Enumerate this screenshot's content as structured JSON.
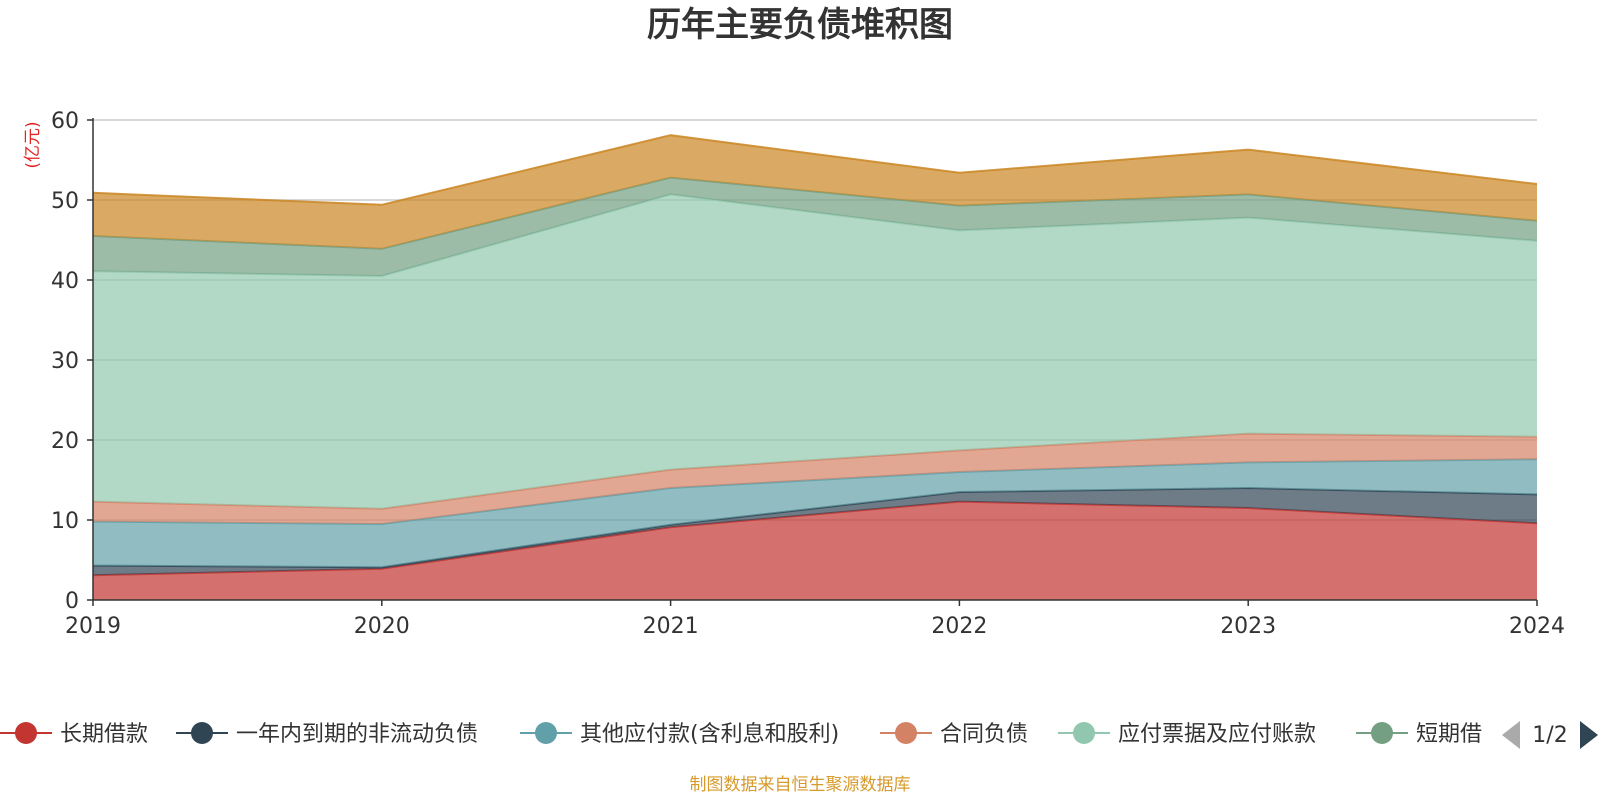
{
  "chart_data": {
    "type": "area",
    "stacked": true,
    "title": "历年主要负债堆积图",
    "unit_label": "(亿元)",
    "x": [
      "2019",
      "2020",
      "2021",
      "2022",
      "2023",
      "2024"
    ],
    "ylim": [
      0,
      60
    ],
    "yticks": [
      0,
      10,
      20,
      30,
      40,
      50,
      60
    ],
    "grid": true,
    "legend_position": "bottom",
    "series": [
      {
        "name": "长期借款",
        "color": "#c23531",
        "values": [
          3.1,
          3.9,
          9.1,
          12.3,
          11.5,
          9.6
        ]
      },
      {
        "name": "一年内到期的非流动负债",
        "color": "#2f4554",
        "values": [
          1.2,
          0.2,
          0.3,
          1.2,
          2.5,
          3.6
        ]
      },
      {
        "name": "其他应付款(含利息和股利)",
        "color": "#61a0a8",
        "values": [
          5.5,
          5.4,
          4.6,
          2.5,
          3.2,
          4.4
        ]
      },
      {
        "name": "合同负债",
        "color": "#d48265",
        "values": [
          2.5,
          1.9,
          2.3,
          2.7,
          3.6,
          2.8
        ]
      },
      {
        "name": "应付票据及应付账款",
        "color": "#91c7ae",
        "values": [
          28.8,
          29.1,
          34.4,
          27.5,
          27.0,
          24.5
        ]
      },
      {
        "name": "短期借款",
        "color": "#749f83",
        "values": [
          4.4,
          3.4,
          2.1,
          3.1,
          2.9,
          2.5
        ]
      },
      {
        "name": "",
        "color": "#ca8622",
        "values": [
          5.4,
          5.5,
          5.3,
          4.1,
          5.6,
          4.6
        ]
      }
    ],
    "legend_visible": [
      "长期借款",
      "一年内到期的非流动负债",
      "其他应付款(含利息和股利)",
      "合同负债",
      "应付票据及应付账款",
      "短期借"
    ]
  },
  "legend": {
    "page_indicator": "1/2"
  },
  "footer": {
    "source": "制图数据来自恒生聚源数据库"
  }
}
